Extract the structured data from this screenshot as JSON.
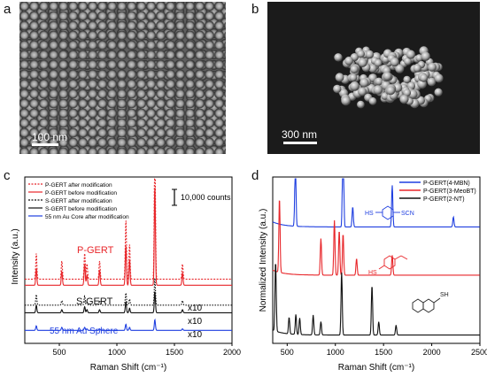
{
  "panels": {
    "a": {
      "label": "a",
      "scale_label": "100 nm"
    },
    "b": {
      "label": "b",
      "scale_label": "300 nm"
    },
    "c": {
      "label": "c"
    },
    "d": {
      "label": "d"
    }
  },
  "chart_data": [
    {
      "type": "line",
      "panel": "c",
      "xlabel": "Raman Shift (cm⁻¹)",
      "ylabel": "Intensity (a.u.)",
      "xlim": [
        200,
        2000
      ],
      "xticks": [
        500,
        1000,
        1500,
        2000
      ],
      "scale_bar_label": "10,000 counts",
      "legend_position": "top-left",
      "legend": [
        {
          "name": "P-GERT after modification",
          "color": "#e8262a",
          "style": "dotted"
        },
        {
          "name": "P-GERT before modification",
          "color": "#e8262a",
          "style": "solid"
        },
        {
          "name": "S-GERT after modification",
          "color": "#111111",
          "style": "dotted"
        },
        {
          "name": "S-GERT before modification",
          "color": "#111111",
          "style": "solid"
        },
        {
          "name": "55 nm Au Core after modification",
          "color": "#1f3fe0",
          "style": "solid"
        }
      ],
      "annotations": [
        {
          "text": "P-GERT",
          "color": "#e8262a"
        },
        {
          "text": "S-GERT",
          "color": "#111111"
        },
        {
          "text": "55 nm Au Sphere",
          "color": "#1f3fe0"
        },
        {
          "text": "x10",
          "color": "#111111"
        },
        {
          "text": "x10",
          "color": "#111111"
        },
        {
          "text": "x10",
          "color": "#111111"
        }
      ],
      "peaks": [
        {
          "x": 300,
          "heights": [
            0.17,
            0.11,
            0.07,
            0.05,
            0.03
          ]
        },
        {
          "x": 522,
          "heights": [
            0.12,
            0.09,
            0.03,
            0.02,
            0.02
          ]
        },
        {
          "x": 720,
          "heights": [
            0.17,
            0.14,
            0.06,
            0.04,
            0.02
          ]
        },
        {
          "x": 740,
          "heights": [
            0.1,
            0.07,
            0.02,
            0.02,
            0.01
          ]
        },
        {
          "x": 850,
          "heights": [
            0.12,
            0.1,
            0.03,
            0.02,
            0.01
          ]
        },
        {
          "x": 1078,
          "heights": [
            0.39,
            0.26,
            0.08,
            0.07,
            0.04
          ]
        },
        {
          "x": 1110,
          "heights": [
            0.23,
            0.17,
            0.04,
            0.03,
            0.02
          ]
        },
        {
          "x": 1330,
          "heights": [
            1.0,
            0.65,
            0.18,
            0.14,
            0.07
          ]
        },
        {
          "x": 1570,
          "heights": [
            0.1,
            0.08,
            0.03,
            0.02,
            0.01
          ]
        }
      ],
      "baselines": [
        0.42,
        0.38,
        0.25,
        0.2,
        0.085
      ]
    },
    {
      "type": "line",
      "panel": "d",
      "xlabel": "Raman Shift (cm⁻¹)",
      "ylabel": "Normalized Intensity (a.u.)",
      "xlim": [
        350,
        2500
      ],
      "xticks": [
        500,
        1000,
        1500,
        2000,
        2500
      ],
      "legend_position": "top-right",
      "series": [
        {
          "name": "P-GERT(4-MBN)",
          "color": "#1f3fe0",
          "peaks": [
            [
              585,
              0.4
            ],
            [
              1080,
              0.7
            ],
            [
              1180,
              0.12
            ],
            [
              1590,
              0.25
            ],
            [
              2225,
              0.06
            ]
          ],
          "baseline": 0.7
        },
        {
          "name": "P-GERT(3-MeoBT)",
          "color": "#e8262a",
          "peaks": [
            [
              420,
              0.45
            ],
            [
              850,
              0.22
            ],
            [
              990,
              0.33
            ],
            [
              1040,
              0.27
            ],
            [
              1080,
              0.25
            ],
            [
              1220,
              0.1
            ],
            [
              1590,
              0.12
            ]
          ],
          "baseline": 0.41
        },
        {
          "name": "P-GERT(2-NT)",
          "color": "#111111",
          "peaks": [
            [
              380,
              0.42
            ],
            [
              520,
              0.1
            ],
            [
              590,
              0.12
            ],
            [
              630,
              0.1
            ],
            [
              770,
              0.12
            ],
            [
              850,
              0.08
            ],
            [
              1065,
              0.38
            ],
            [
              1380,
              0.3
            ],
            [
              1450,
              0.08
            ],
            [
              1630,
              0.06
            ]
          ],
          "baseline": 0.05
        }
      ],
      "structure_labels": [
        "HS",
        "SCN",
        "HS",
        "SH"
      ]
    }
  ]
}
